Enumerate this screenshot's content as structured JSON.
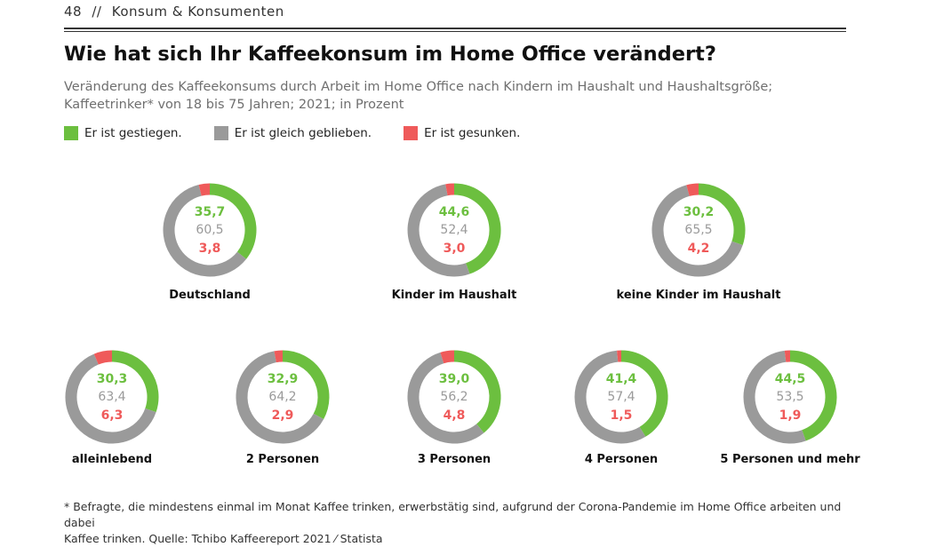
{
  "header": {
    "page_number": "48",
    "separator": "//",
    "section": "Konsum & Konsumenten"
  },
  "title": "Wie hat sich Ihr Kaffeekonsum im Home Office verändert?",
  "subtitle_lines": [
    "Veränderung des Kaffeekonsums durch Arbeit im Home Office nach Kindern im Haushalt und Haushaltsgröße;",
    "Kaffeetrinker* von 18 bis 75 Jahren; 2021; in Prozent"
  ],
  "colors": {
    "gestiegen": "#6cbf3f",
    "gleich": "#9a9a9a",
    "gesunken": "#ef5a5a"
  },
  "legend": [
    {
      "label": "Er ist gestiegen.",
      "color": "#6cbf3f"
    },
    {
      "label": "Er ist gleich geblieben.",
      "color": "#9a9a9a"
    },
    {
      "label": "Er ist gesunken.",
      "color": "#ef5a5a"
    }
  ],
  "chart_data": {
    "type": "donut",
    "series_names": [
      "Er ist gestiegen.",
      "Er ist gleich geblieben.",
      "Er ist gesunken."
    ],
    "unit": "Prozent",
    "charts": [
      {
        "label": "Deutschland",
        "values": [
          35.7,
          60.5,
          3.8
        ],
        "value_labels": [
          "35,7",
          "60,5",
          "3,8"
        ]
      },
      {
        "label": "Kinder im Haushalt",
        "values": [
          44.6,
          52.4,
          3.0
        ],
        "value_labels": [
          "44,6",
          "52,4",
          "3,0"
        ]
      },
      {
        "label": "keine Kinder im Haushalt",
        "values": [
          30.2,
          65.5,
          4.2
        ],
        "value_labels": [
          "30,2",
          "65,5",
          "4,2"
        ]
      },
      {
        "label": "alleinlebend",
        "values": [
          30.3,
          63.4,
          6.3
        ],
        "value_labels": [
          "30,3",
          "63,4",
          "6,3"
        ]
      },
      {
        "label": "2 Personen",
        "values": [
          32.9,
          64.2,
          2.9
        ],
        "value_labels": [
          "32,9",
          "64,2",
          "2,9"
        ]
      },
      {
        "label": "3 Personen",
        "values": [
          39.0,
          56.2,
          4.8
        ],
        "value_labels": [
          "39,0",
          "56,2",
          "4,8"
        ]
      },
      {
        "label": "4 Personen",
        "values": [
          41.4,
          57.4,
          1.5
        ],
        "value_labels": [
          "41,4",
          "57,4",
          "1,5"
        ]
      },
      {
        "label": "5 Personen und mehr",
        "values": [
          44.5,
          53.5,
          1.9
        ],
        "value_labels": [
          "44,5",
          "53,5",
          "1,9"
        ]
      }
    ]
  },
  "footnote_lines": [
    "* Befragte, die mindestens einmal im Monat Kaffee trinken, erwerbstätig sind, aufgrund der Corona-Pandemie im Home Office arbeiten und dabei",
    "Kaffee trinken. Quelle: Tchibo Kaffeereport 2021 ⁄ Statista"
  ]
}
